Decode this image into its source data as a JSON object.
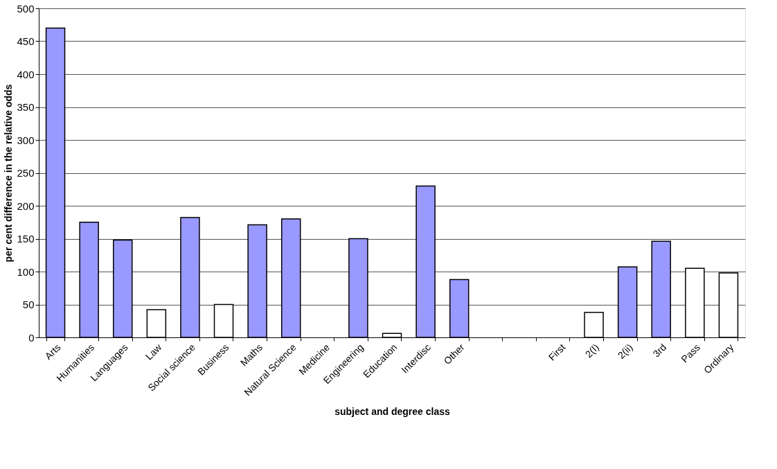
{
  "chart_data": {
    "type": "bar",
    "xlabel": "subject and degree class",
    "ylabel": "per cent difference in the relative odds",
    "categories": [
      "Arts",
      "Humanities",
      "Languages",
      "Law",
      "Social science",
      "Business",
      "Maths",
      "Natural Science",
      "Medicine",
      "Engineering",
      "Education",
      "Interdisc",
      "Other",
      null,
      null,
      "First",
      "2(I)",
      "2(ii)",
      "3rd",
      "Pass",
      "Ordinary"
    ],
    "values": [
      470,
      175,
      148,
      42,
      182,
      50,
      171,
      180,
      null,
      150,
      6,
      230,
      88,
      null,
      null,
      null,
      38,
      107,
      146,
      105,
      98
    ],
    "colors": [
      "#9999ff",
      "#9999ff",
      "#9999ff",
      "#ffffff",
      "#9999ff",
      "#ffffff",
      "#9999ff",
      "#9999ff",
      "#ffffff",
      "#9999ff",
      "#ffffff",
      "#9999ff",
      "#9999ff",
      "#ffffff",
      "#ffffff",
      "#ffffff",
      "#ffffff",
      "#9999ff",
      "#9999ff",
      "#ffffff",
      "#ffffff"
    ],
    "ylim": [
      0,
      500
    ],
    "yticks": [
      0,
      50,
      100,
      150,
      200,
      250,
      300,
      350,
      400,
      450,
      500
    ],
    "grid": "y"
  }
}
